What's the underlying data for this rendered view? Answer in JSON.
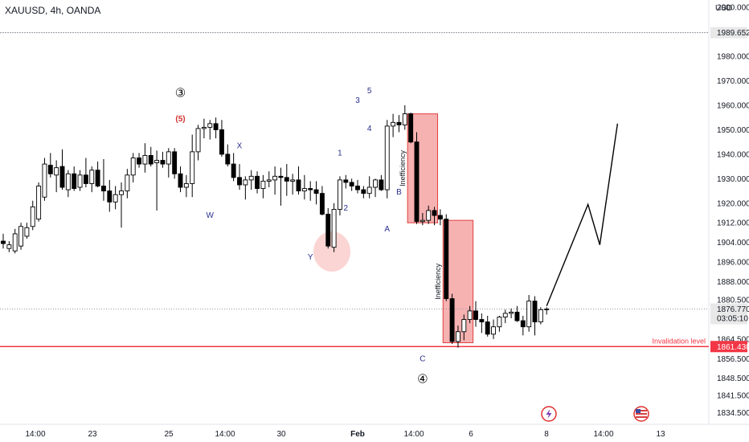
{
  "header": {
    "title": "XAUUSD, 4h, OANDA",
    "currency": "USD"
  },
  "colors": {
    "up": "#ffffff",
    "down": "#000000",
    "wick": "#000000",
    "red_line": "#f23645",
    "zone_fill": "#f5a3a3",
    "zone_stroke": "#e0403f",
    "circle_fill": "#f8c7c4",
    "label_bg": "#e8e8e8"
  },
  "chart_data": {
    "type": "candlestick",
    "y_range": [
      1830,
      2003
    ],
    "y_ticks": [
      "2000.000",
      "1989.652",
      "1980.000",
      "1970.000",
      "1960.000",
      "1950.000",
      "1940.000",
      "1930.000",
      "1920.000",
      "1912.000",
      "1904.000",
      "1896.000",
      "1888.000",
      "1880.500",
      "1876.770",
      "1864.500",
      "1861.430",
      "1856.500",
      "1848.500",
      "1841.500",
      "1834.500"
    ],
    "plain_ticks": [
      2000.0,
      1980.0,
      1970.0,
      1960.0,
      1950.0,
      1940.0,
      1930.0,
      1920.0,
      1912.0,
      1904.0,
      1896.0,
      1888.0,
      1880.5,
      1864.5,
      1856.5,
      1848.5,
      1841.5,
      1834.5
    ],
    "x_labels": [
      "14:00",
      "23",
      "25",
      "14:00",
      "30",
      "Feb",
      "14:00",
      "6",
      "8",
      "14:00",
      "13"
    ],
    "candles": [
      {
        "o": 1904.5,
        "h": 1907.5,
        "l": 1901.5,
        "c": 1903.5
      },
      {
        "o": 1901.5,
        "h": 1904.5,
        "l": 1900.0,
        "c": 1903.0
      },
      {
        "o": 1900.5,
        "h": 1909.5,
        "l": 1899.5,
        "c": 1907.5
      },
      {
        "o": 1902.5,
        "h": 1912.0,
        "l": 1901.0,
        "c": 1910.5
      },
      {
        "o": 1906.5,
        "h": 1912.0,
        "l": 1905.5,
        "c": 1910.0
      },
      {
        "o": 1910.5,
        "h": 1921.0,
        "l": 1909.0,
        "c": 1918.5
      },
      {
        "o": 1913.5,
        "h": 1928.5,
        "l": 1912.5,
        "c": 1927.0
      },
      {
        "o": 1922.5,
        "h": 1938.5,
        "l": 1921.0,
        "c": 1936.0
      },
      {
        "o": 1935.5,
        "h": 1940.5,
        "l": 1930.5,
        "c": 1932.0
      },
      {
        "o": 1931.5,
        "h": 1937.5,
        "l": 1924.5,
        "c": 1934.5
      },
      {
        "o": 1935.0,
        "h": 1942.0,
        "l": 1925.5,
        "c": 1926.5
      },
      {
        "o": 1925.5,
        "h": 1933.5,
        "l": 1922.5,
        "c": 1932.0
      },
      {
        "o": 1932.0,
        "h": 1935.0,
        "l": 1925.0,
        "c": 1926.0
      },
      {
        "o": 1926.5,
        "h": 1933.5,
        "l": 1925.0,
        "c": 1931.5
      },
      {
        "o": 1931.5,
        "h": 1938.5,
        "l": 1926.5,
        "c": 1928.0
      },
      {
        "o": 1928.0,
        "h": 1935.0,
        "l": 1924.5,
        "c": 1933.5
      },
      {
        "o": 1933.5,
        "h": 1937.0,
        "l": 1926.5,
        "c": 1927.0
      },
      {
        "o": 1927.0,
        "h": 1938.0,
        "l": 1921.0,
        "c": 1925.0
      },
      {
        "o": 1925.0,
        "h": 1929.5,
        "l": 1916.5,
        "c": 1920.5
      },
      {
        "o": 1920.5,
        "h": 1927.0,
        "l": 1917.5,
        "c": 1923.5
      },
      {
        "o": 1923.5,
        "h": 1928.5,
        "l": 1910.0,
        "c": 1925.0
      },
      {
        "o": 1925.0,
        "h": 1934.0,
        "l": 1922.0,
        "c": 1931.5
      },
      {
        "o": 1931.5,
        "h": 1940.5,
        "l": 1928.5,
        "c": 1938.5
      },
      {
        "o": 1938.5,
        "h": 1940.5,
        "l": 1934.5,
        "c": 1936.0
      },
      {
        "o": 1936.0,
        "h": 1944.5,
        "l": 1932.5,
        "c": 1939.5
      },
      {
        "o": 1939.5,
        "h": 1943.0,
        "l": 1935.0,
        "c": 1936.0
      },
      {
        "o": 1936.5,
        "h": 1941.5,
        "l": 1917.0,
        "c": 1937.5
      },
      {
        "o": 1937.5,
        "h": 1941.0,
        "l": 1934.5,
        "c": 1936.0
      },
      {
        "o": 1936.0,
        "h": 1942.5,
        "l": 1930.5,
        "c": 1941.0
      },
      {
        "o": 1941.0,
        "h": 1942.5,
        "l": 1930.0,
        "c": 1932.0
      },
      {
        "o": 1932.0,
        "h": 1935.0,
        "l": 1924.5,
        "c": 1926.5
      },
      {
        "o": 1926.5,
        "h": 1931.5,
        "l": 1922.5,
        "c": 1928.0
      },
      {
        "o": 1928.0,
        "h": 1948.0,
        "l": 1922.5,
        "c": 1941.0
      },
      {
        "o": 1941.0,
        "h": 1952.0,
        "l": 1937.5,
        "c": 1950.5
      },
      {
        "o": 1950.5,
        "h": 1954.5,
        "l": 1946.5,
        "c": 1951.0
      },
      {
        "o": 1951.0,
        "h": 1954.0,
        "l": 1946.0,
        "c": 1952.5
      },
      {
        "o": 1952.5,
        "h": 1955.0,
        "l": 1946.5,
        "c": 1950.0
      },
      {
        "o": 1950.0,
        "h": 1954.0,
        "l": 1939.0,
        "c": 1940.0
      },
      {
        "o": 1940.0,
        "h": 1944.0,
        "l": 1935.0,
        "c": 1936.0
      },
      {
        "o": 1936.0,
        "h": 1940.5,
        "l": 1929.0,
        "c": 1930.5
      },
      {
        "o": 1930.5,
        "h": 1936.0,
        "l": 1925.5,
        "c": 1927.5
      },
      {
        "o": 1927.5,
        "h": 1931.0,
        "l": 1921.5,
        "c": 1929.5
      },
      {
        "o": 1929.5,
        "h": 1933.5,
        "l": 1925.5,
        "c": 1931.0
      },
      {
        "o": 1931.0,
        "h": 1933.0,
        "l": 1924.0,
        "c": 1926.0
      },
      {
        "o": 1926.0,
        "h": 1931.5,
        "l": 1922.0,
        "c": 1929.0
      },
      {
        "o": 1929.0,
        "h": 1933.0,
        "l": 1926.5,
        "c": 1929.5
      },
      {
        "o": 1929.5,
        "h": 1935.0,
        "l": 1923.5,
        "c": 1931.0
      },
      {
        "o": 1931.0,
        "h": 1934.5,
        "l": 1919.0,
        "c": 1930.5
      },
      {
        "o": 1930.5,
        "h": 1936.0,
        "l": 1923.0,
        "c": 1929.0
      },
      {
        "o": 1929.0,
        "h": 1932.0,
        "l": 1923.5,
        "c": 1929.5
      },
      {
        "o": 1929.5,
        "h": 1935.0,
        "l": 1923.5,
        "c": 1925.0
      },
      {
        "o": 1925.0,
        "h": 1931.5,
        "l": 1921.5,
        "c": 1926.0
      },
      {
        "o": 1926.0,
        "h": 1929.0,
        "l": 1921.0,
        "c": 1925.5
      },
      {
        "o": 1925.5,
        "h": 1929.0,
        "l": 1919.5,
        "c": 1924.0
      },
      {
        "o": 1924.0,
        "h": 1927.0,
        "l": 1915.0,
        "c": 1915.5
      },
      {
        "o": 1915.5,
        "h": 1918.0,
        "l": 1901.5,
        "c": 1902.5
      },
      {
        "o": 1902.0,
        "h": 1920.0,
        "l": 1900.0,
        "c": 1917.5
      },
      {
        "o": 1917.5,
        "h": 1931.0,
        "l": 1915.0,
        "c": 1929.5
      },
      {
        "o": 1929.5,
        "h": 1931.5,
        "l": 1926.0,
        "c": 1928.5
      },
      {
        "o": 1928.5,
        "h": 1930.0,
        "l": 1925.0,
        "c": 1927.0
      },
      {
        "o": 1927.0,
        "h": 1929.5,
        "l": 1924.0,
        "c": 1925.5
      },
      {
        "o": 1925.5,
        "h": 1927.0,
        "l": 1922.0,
        "c": 1924.0
      },
      {
        "o": 1924.0,
        "h": 1931.0,
        "l": 1922.0,
        "c": 1926.5
      },
      {
        "o": 1926.5,
        "h": 1930.0,
        "l": 1922.5,
        "c": 1929.5
      },
      {
        "o": 1929.5,
        "h": 1931.5,
        "l": 1925.0,
        "c": 1925.5
      },
      {
        "o": 1925.5,
        "h": 1954.0,
        "l": 1922.0,
        "c": 1951.5
      },
      {
        "o": 1951.5,
        "h": 1956.5,
        "l": 1947.0,
        "c": 1953.0
      },
      {
        "o": 1953.0,
        "h": 1956.0,
        "l": 1949.0,
        "c": 1952.0
      },
      {
        "o": 1952.0,
        "h": 1960.0,
        "l": 1950.0,
        "c": 1956.5
      },
      {
        "o": 1956.5,
        "h": 1957.0,
        "l": 1944.5,
        "c": 1945.0
      },
      {
        "o": 1945.0,
        "h": 1949.0,
        "l": 1911.5,
        "c": 1912.5
      },
      {
        "o": 1912.5,
        "h": 1916.0,
        "l": 1911.0,
        "c": 1913.0
      },
      {
        "o": 1913.0,
        "h": 1919.0,
        "l": 1911.5,
        "c": 1917.0
      },
      {
        "o": 1917.0,
        "h": 1918.5,
        "l": 1911.0,
        "c": 1915.0
      },
      {
        "o": 1915.0,
        "h": 1917.5,
        "l": 1911.0,
        "c": 1913.5
      },
      {
        "o": 1913.5,
        "h": 1915.5,
        "l": 1880.0,
        "c": 1881.0
      },
      {
        "o": 1881.0,
        "h": 1883.0,
        "l": 1862.5,
        "c": 1863.5
      },
      {
        "o": 1863.5,
        "h": 1870.0,
        "l": 1861.0,
        "c": 1867.5
      },
      {
        "o": 1867.5,
        "h": 1874.5,
        "l": 1864.0,
        "c": 1872.5
      },
      {
        "o": 1872.5,
        "h": 1878.0,
        "l": 1871.0,
        "c": 1876.0
      },
      {
        "o": 1876.0,
        "h": 1880.0,
        "l": 1869.5,
        "c": 1872.5
      },
      {
        "o": 1872.5,
        "h": 1875.0,
        "l": 1867.0,
        "c": 1871.5
      },
      {
        "o": 1871.5,
        "h": 1874.0,
        "l": 1865.5,
        "c": 1866.5
      },
      {
        "o": 1866.5,
        "h": 1872.5,
        "l": 1864.5,
        "c": 1869.5
      },
      {
        "o": 1869.5,
        "h": 1874.0,
        "l": 1867.5,
        "c": 1873.5
      },
      {
        "o": 1873.5,
        "h": 1876.5,
        "l": 1871.0,
        "c": 1875.0
      },
      {
        "o": 1875.0,
        "h": 1877.0,
        "l": 1873.0,
        "c": 1875.5
      },
      {
        "o": 1875.5,
        "h": 1878.0,
        "l": 1871.5,
        "c": 1872.0
      },
      {
        "o": 1872.0,
        "h": 1874.0,
        "l": 1866.0,
        "c": 1869.5
      },
      {
        "o": 1869.5,
        "h": 1882.5,
        "l": 1867.5,
        "c": 1880.0
      },
      {
        "o": 1880.0,
        "h": 1882.0,
        "l": 1866.0,
        "c": 1871.5
      },
      {
        "o": 1871.5,
        "h": 1877.5,
        "l": 1870.5,
        "c": 1876.5
      },
      {
        "o": 1876.5,
        "h": 1877.5,
        "l": 1874.5,
        "c": 1876.8
      }
    ],
    "horizontal_levels": [
      {
        "price": 1989.652,
        "label": "1989.652",
        "style": "gray-dashed"
      },
      {
        "price": 1876.77,
        "label": "1876.770",
        "sublabel": "03:05:10",
        "style": "gray-dotted"
      },
      {
        "price": 1861.43,
        "label": "1861.430",
        "style": "red-solid",
        "text": "Invalidation level"
      }
    ],
    "zones": [
      {
        "label": "Inefficiency",
        "from_index": 69,
        "to_index": 73,
        "top": 1956.5,
        "bottom": 1912.0
      },
      {
        "label": "Inefficiency",
        "from_index": 75,
        "to_index": 79,
        "top": 1913.0,
        "bottom": 1863.0
      }
    ],
    "projection": [
      {
        "index": 92,
        "price": 1878.0
      },
      {
        "index": 99,
        "price": 1919.5
      },
      {
        "index": 101,
        "price": 1903.0
      },
      {
        "index": 104,
        "price": 1952.5
      }
    ],
    "wave_labels": [
      {
        "text": "③",
        "index": 30,
        "price": 1963.5,
        "style": "black"
      },
      {
        "text": "(5)",
        "index": 30,
        "price": 1953.5,
        "style": "red"
      },
      {
        "text": "W",
        "index": 35,
        "price": 1914.0,
        "style": "navy"
      },
      {
        "text": "X",
        "index": 40,
        "price": 1942.5,
        "style": "navy"
      },
      {
        "text": "Y",
        "index": 52,
        "price": 1897.0,
        "style": "navy"
      },
      {
        "text": "1",
        "index": 57,
        "price": 1939.5,
        "style": "navy"
      },
      {
        "text": "2",
        "index": 58,
        "price": 1917.0,
        "style": "navy"
      },
      {
        "text": "3",
        "index": 60,
        "price": 1961.0,
        "style": "navy"
      },
      {
        "text": "4",
        "index": 62,
        "price": 1949.5,
        "style": "navy"
      },
      {
        "text": "5",
        "index": 62,
        "price": 1965.0,
        "style": "navy"
      },
      {
        "text": "A",
        "index": 65,
        "price": 1908.5,
        "style": "navy"
      },
      {
        "text": "B",
        "index": 67,
        "price": 1923.5,
        "style": "navy"
      },
      {
        "text": "C",
        "index": 71,
        "price": 1855.5,
        "style": "navy"
      },
      {
        "text": "④",
        "index": 71,
        "price": 1846.5,
        "style": "black"
      }
    ]
  }
}
